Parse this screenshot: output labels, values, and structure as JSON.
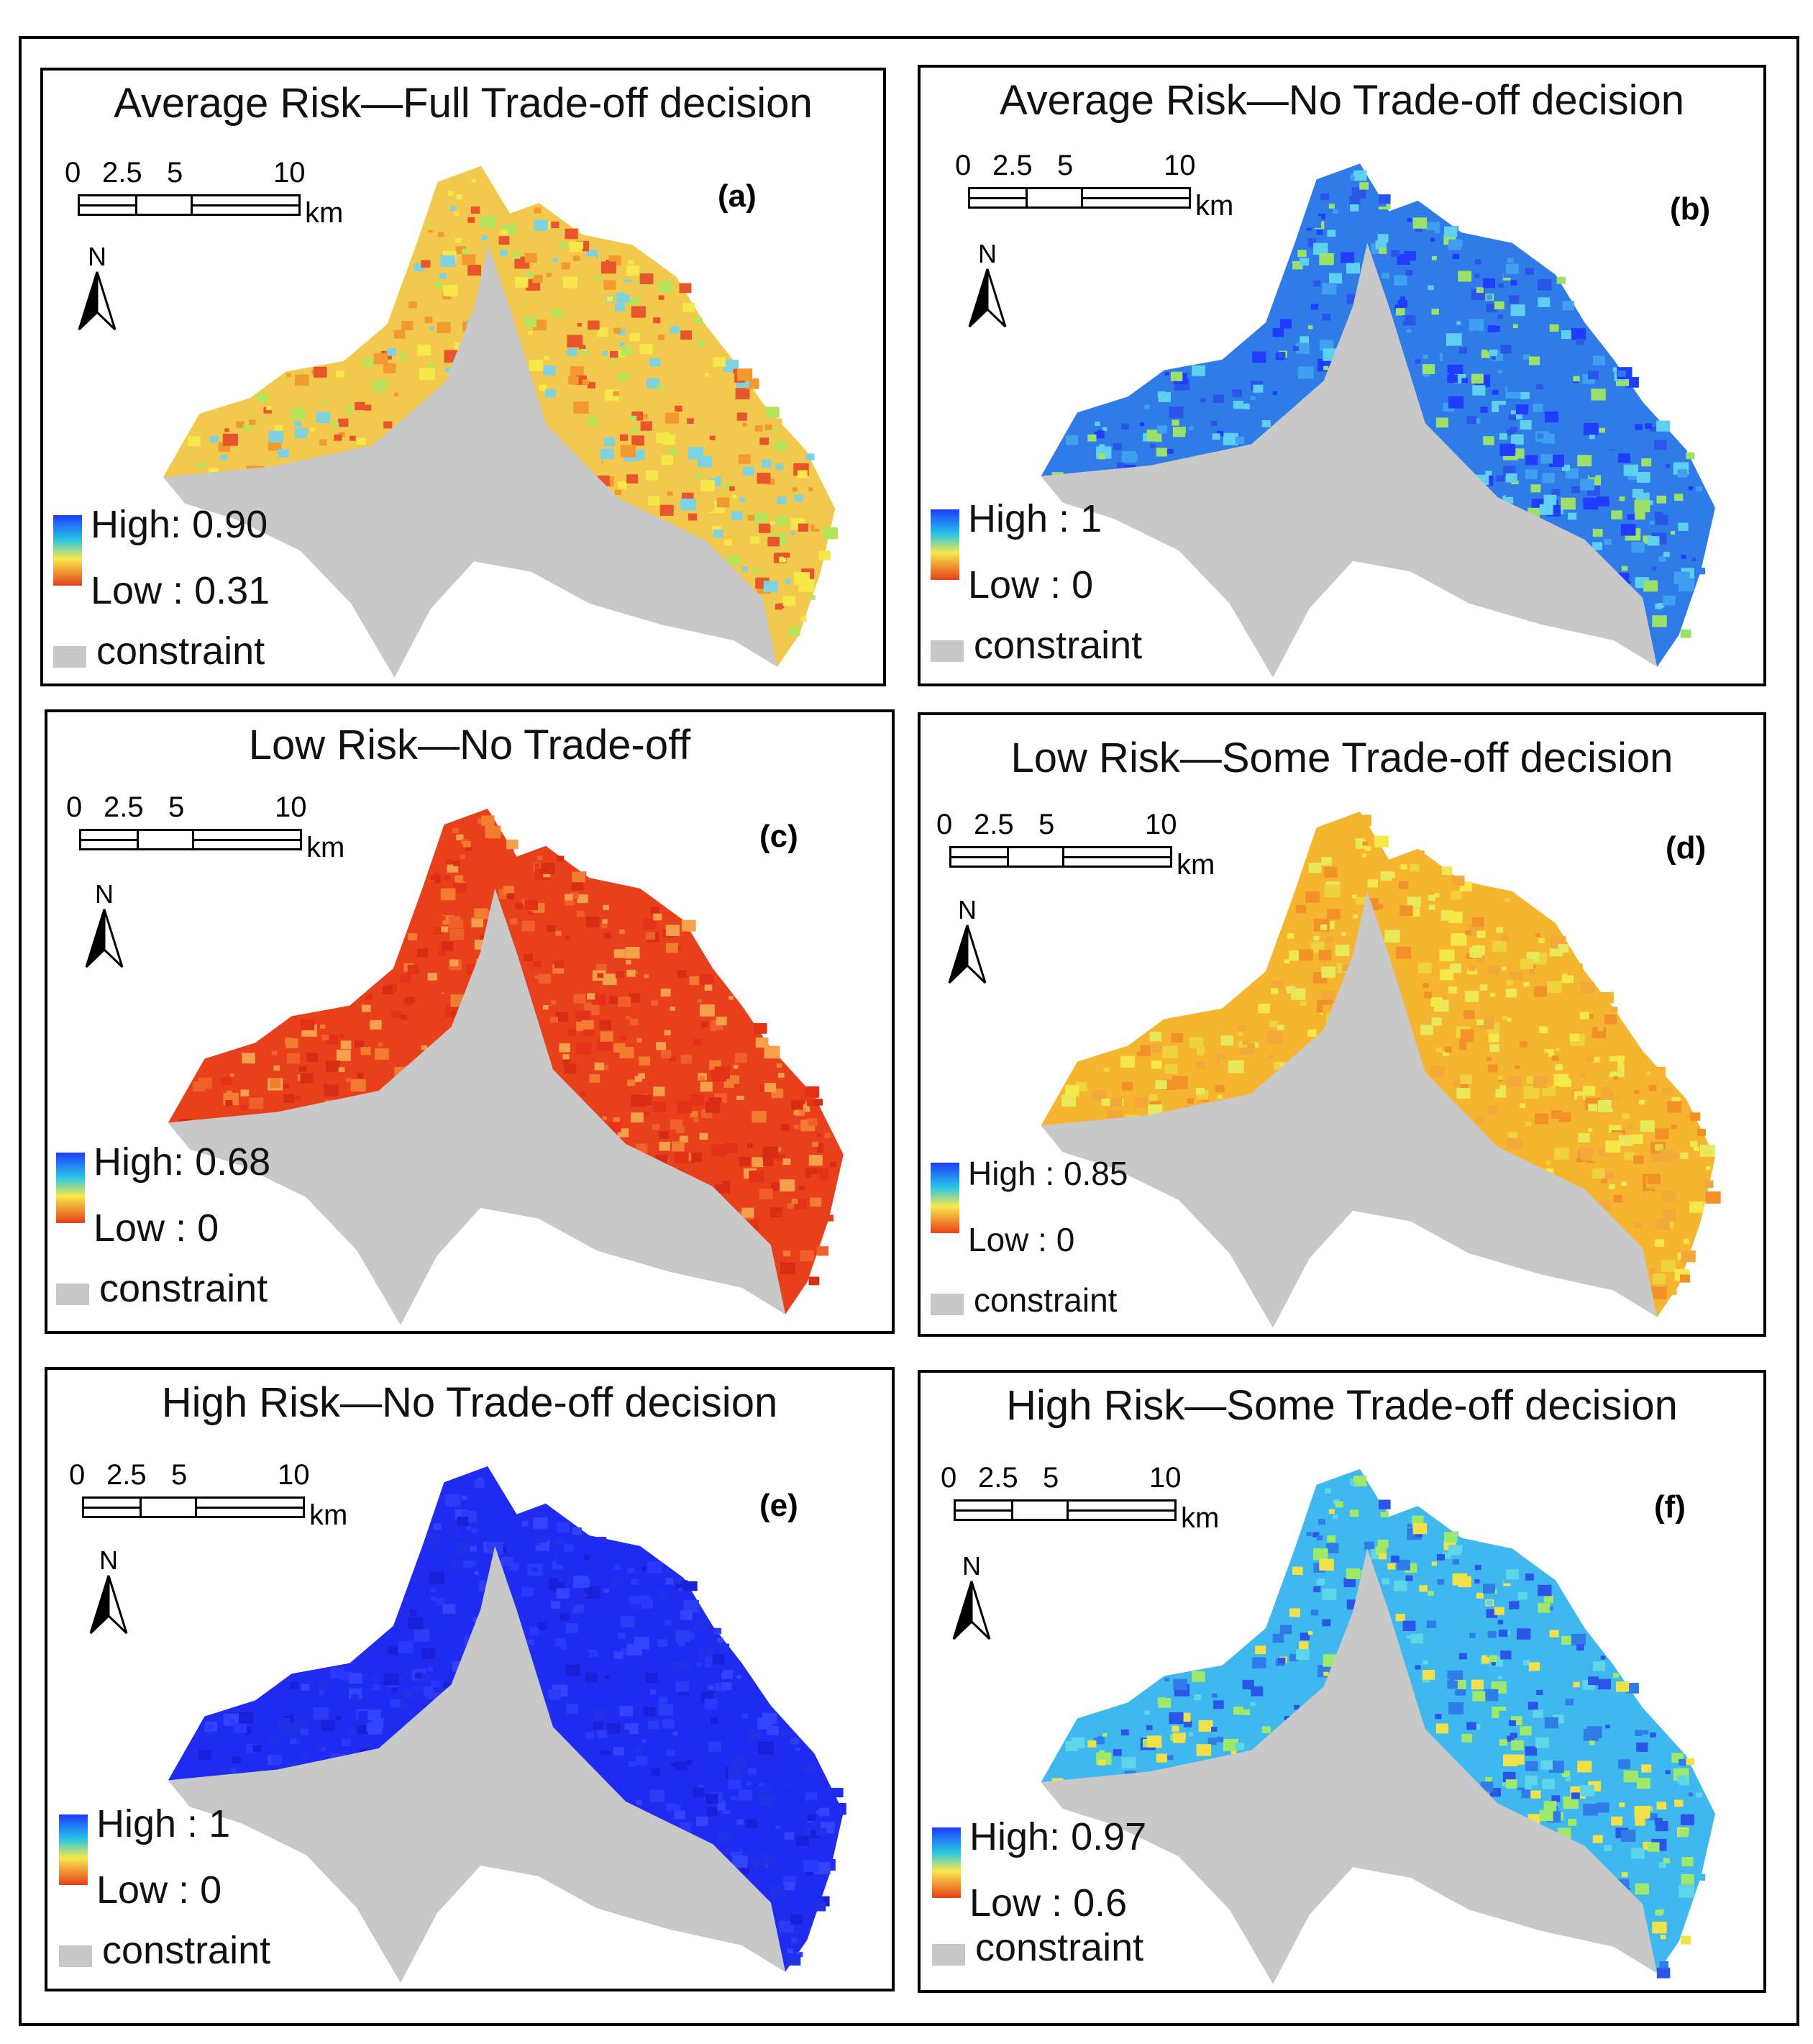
{
  "colors": {
    "constraint": "#c8c8c8",
    "ramp_high": "#1f3cff",
    "ramp_mid": "#f7e84a",
    "ramp_low": "#e8401b"
  },
  "common": {
    "scale_ticks": [
      "0",
      "2.5",
      "5",
      "10"
    ],
    "scale_unit": "km",
    "north_label": "N",
    "constraint_label": "constraint"
  },
  "panels": [
    {
      "title": "Average Risk—Full Trade-off decision",
      "label": "(a)",
      "legend_high": "High: 0.90",
      "legend_low": "Low : 0.31",
      "dominant_colormap": "yellow-orange with blue speckle"
    },
    {
      "title": "Average Risk—No Trade-off decision",
      "label": "(b)",
      "legend_high": "High : 1",
      "legend_low": "Low : 0",
      "dominant_colormap": "blue-cyan"
    },
    {
      "title": "Low Risk—No Trade-off",
      "label": "(c)",
      "legend_high": "High: 0.68",
      "legend_low": "Low : 0",
      "dominant_colormap": "red-orange"
    },
    {
      "title": "Low Risk—Some Trade-off decision",
      "label": "(d)",
      "legend_high": "High : 0.85",
      "legend_low": "Low : 0",
      "dominant_colormap": "yellow-orange"
    },
    {
      "title": "High Risk—No Trade-off decision",
      "label": "(e)",
      "legend_high": "High : 1",
      "legend_low": "Low : 0",
      "dominant_colormap": "deep blue"
    },
    {
      "title": "High Risk—Some Trade-off decision",
      "label": "(f)",
      "legend_high": "High: 0.97",
      "legend_low": "Low : 0.6",
      "dominant_colormap": "cyan-blue with yellow/red"
    }
  ]
}
